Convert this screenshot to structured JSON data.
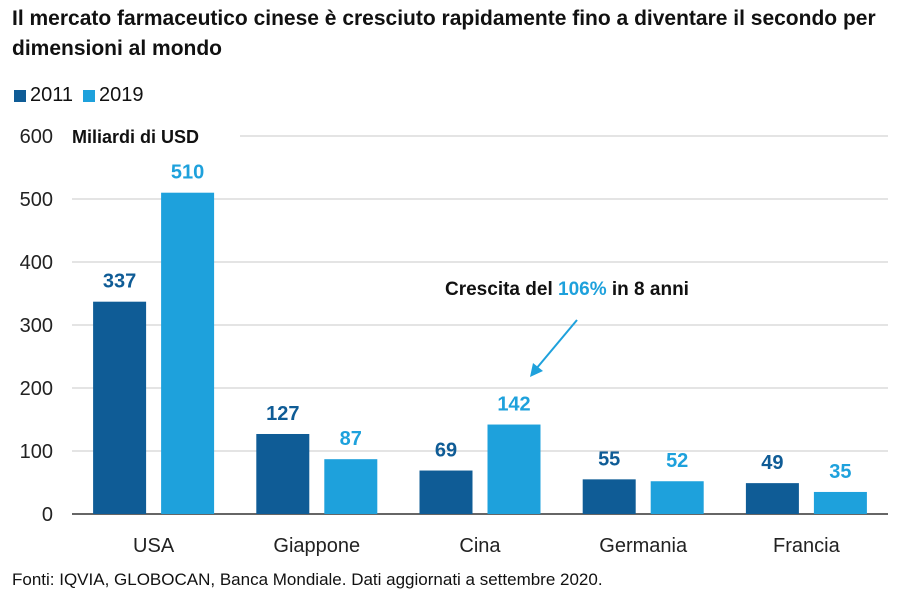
{
  "title": "Il mercato farmaceutico cinese è cresciuto rapidamente fino a diventare il secondo per dimensioni al mondo",
  "source": "Fonti: IQVIA, GLOBOCAN, Banca Mondiale. Dati aggiornati a settembre 2020.",
  "colors": {
    "s2011": "#0f5c96",
    "s2019": "#1ea1dc",
    "grid": "#c8c8c8",
    "arrow": "#1ea1dc"
  },
  "annotation": {
    "prefix": "Crescita del ",
    "highlight": "106%",
    "suffix": " in 8 anni"
  },
  "chart_data": {
    "type": "bar",
    "ylabel": "Miliardi di USD",
    "ylim": [
      0,
      600
    ],
    "yticks": [
      0,
      100,
      200,
      300,
      400,
      500,
      600
    ],
    "categories": [
      "USA",
      "Giappone",
      "Cina",
      "Germania",
      "Francia"
    ],
    "series": [
      {
        "name": "2011",
        "values": [
          337,
          127,
          69,
          55,
          49
        ]
      },
      {
        "name": "2019",
        "values": [
          510,
          87,
          142,
          52,
          35
        ]
      }
    ],
    "grid": true,
    "legend": "top-left"
  }
}
